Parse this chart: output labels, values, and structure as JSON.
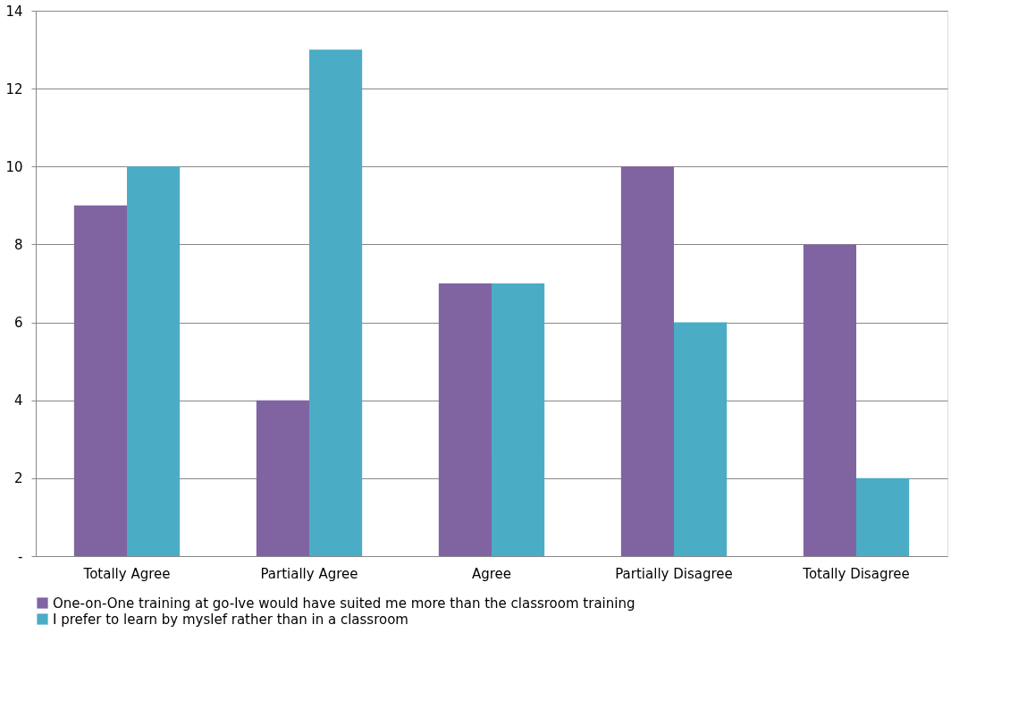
{
  "chart_data": {
    "type": "bar",
    "categories": [
      "Totally Agree",
      "Partially Agree",
      "Agree",
      "Partially Disagree",
      "Totally Disagree"
    ],
    "series": [
      {
        "name": "One-on-One training at go-lve would have suited me more than the classroom training",
        "color": "#8064a2",
        "values": [
          9,
          4,
          7,
          10,
          8
        ]
      },
      {
        "name": "I prefer to learn by myslef rather than in a classroom",
        "color": "#4bacc6",
        "values": [
          10,
          13,
          7,
          6,
          2
        ]
      }
    ],
    "ylim": [
      0,
      14
    ],
    "yticks": [
      {
        "value": 0,
        "label": "-"
      },
      2,
      4,
      6,
      8,
      10,
      12,
      14
    ],
    "grid": "y",
    "legend": "bottom"
  }
}
